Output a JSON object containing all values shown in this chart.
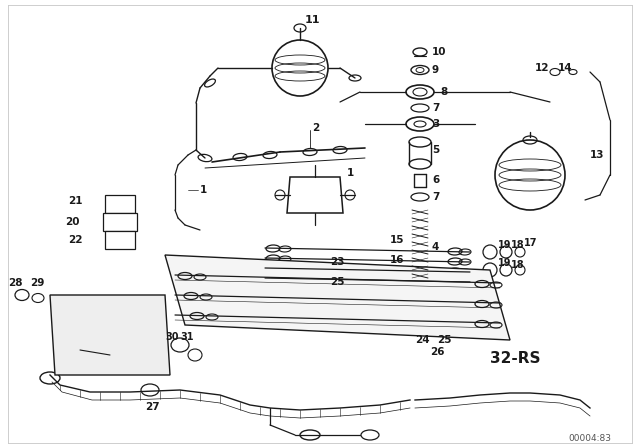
{
  "background_color": "#ffffff",
  "diagram_color": "#1a1a1a",
  "fig_width": 6.4,
  "fig_height": 4.48,
  "dpi": 100,
  "watermark_text": "00004:83",
  "code_text": "32-RS"
}
